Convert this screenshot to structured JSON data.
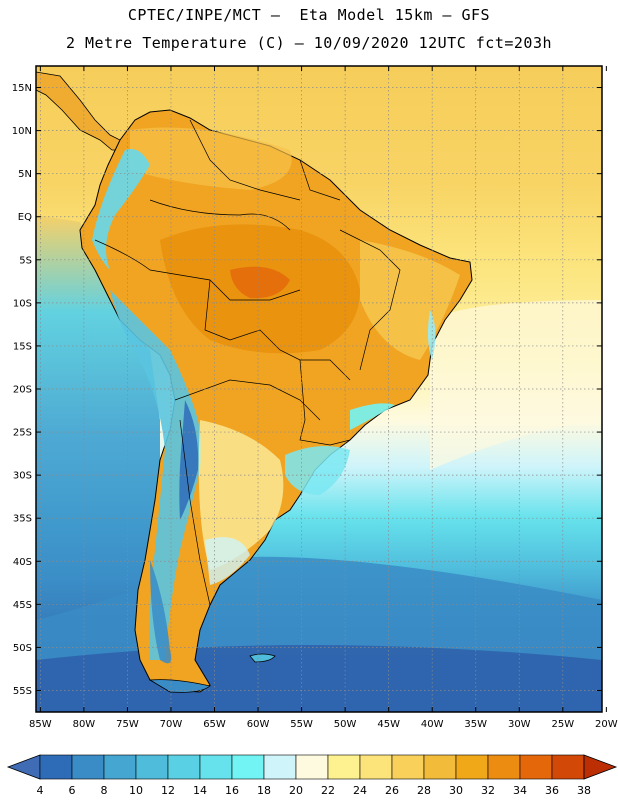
{
  "header": {
    "title_line1": "CPTEC/INPE/MCT –  Eta Model 15km – GFS",
    "title_line2": "2 Metre Temperature (C) – 10/09/2020 12UTC fct=203h"
  },
  "map": {
    "lat_labels": [
      "15N",
      "10N",
      "5N",
      "EQ",
      "5S",
      "10S",
      "15S",
      "20S",
      "25S",
      "30S",
      "35S",
      "40S",
      "45S",
      "50S",
      "55S"
    ],
    "lon_labels": [
      "85W",
      "80W",
      "75W",
      "70W",
      "65W",
      "60W",
      "55W",
      "50W",
      "45W",
      "40W",
      "35W",
      "30W",
      "25W",
      "20W"
    ],
    "lat_range": [
      17.5,
      -57.5
    ],
    "lon_range": [
      -85.5,
      -20.5
    ]
  },
  "colorbar": {
    "labels": [
      "4",
      "6",
      "8",
      "10",
      "12",
      "14",
      "16",
      "18",
      "20",
      "22",
      "24",
      "26",
      "28",
      "30",
      "32",
      "34",
      "36",
      "38"
    ],
    "colors": [
      "#3f6cb4",
      "#2f6cb8",
      "#3a8cc6",
      "#45a6d2",
      "#4fbcdc",
      "#5ad0e4",
      "#66e2ec",
      "#73f4f4",
      "#cff4fa",
      "#fefae0",
      "#fef290",
      "#fde47a",
      "#f8d05a",
      "#f2bc3a",
      "#f0a818",
      "#ec8c10",
      "#e4680a",
      "#d24806",
      "#bc2e04"
    ]
  }
}
